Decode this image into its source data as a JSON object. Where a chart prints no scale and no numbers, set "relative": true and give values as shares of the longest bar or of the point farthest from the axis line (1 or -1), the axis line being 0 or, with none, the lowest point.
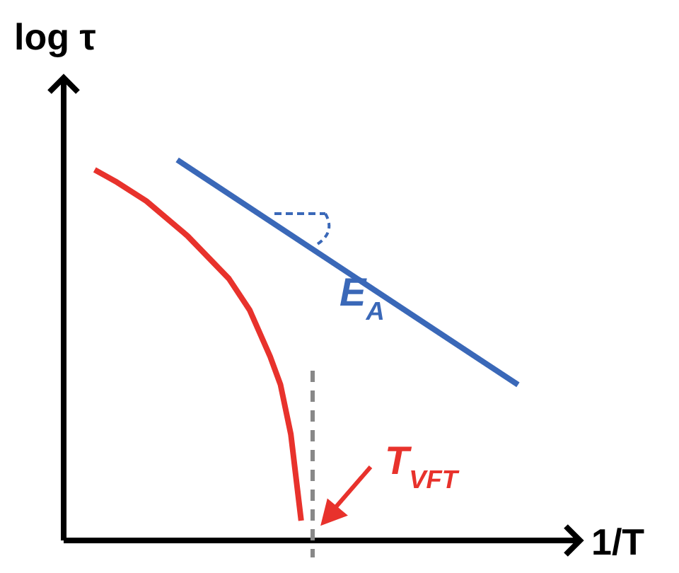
{
  "chart_data": {
    "type": "line",
    "relative": true,
    "ylabel": "log τ",
    "xlabel": "1/T",
    "line_style": "solid",
    "categories": [
      null,
      null,
      null,
      null,
      null,
      null,
      null,
      null,
      null,
      null,
      null,
      null,
      null,
      null,
      null,
      null,
      null,
      null,
      null,
      null,
      null,
      null,
      null,
      null,
      null,
      null,
      null,
      null,
      null,
      null,
      null,
      null,
      null,
      null,
      null,
      null,
      null,
      null,
      null,
      null,
      null,
      null,
      null,
      null,
      null,
      null,
      null,
      null,
      null,
      null,
      null
    ],
    "series": [
      {
        "color": "#e8322c",
        "values": [
          null,
          null,
          null,
          0.974,
          null,
          0.944,
          null,
          null,
          0.892,
          null,
          null,
          null,
          0.8,
          null,
          null,
          null,
          0.688,
          null,
          0.606,
          null,
          0.483,
          0.409,
          0.279,
          0.052,
          null,
          null,
          null,
          null,
          null,
          null,
          null,
          null,
          null,
          null,
          null,
          null,
          null,
          null,
          null,
          null,
          null,
          null,
          null,
          null,
          null,
          null,
          null,
          null,
          null,
          null,
          null
        ]
      },
      {
        "color": "#3a68b8",
        "values": [
          null,
          null,
          null,
          null,
          null,
          null,
          null,
          null,
          null,
          null,
          null,
          1,
          null,
          null,
          null,
          null,
          null,
          null,
          null,
          null,
          null,
          null,
          null,
          null,
          null,
          null,
          null,
          null,
          null,
          null,
          null,
          null,
          null,
          null,
          null,
          null,
          null,
          null,
          null,
          null,
          null,
          null,
          null,
          null,
          0.409,
          null,
          null,
          null,
          null,
          null,
          null
        ]
      }
    ],
    "annotations": [
      "E$_{A}$",
      "T$_{VFT}$"
    ]
  }
}
